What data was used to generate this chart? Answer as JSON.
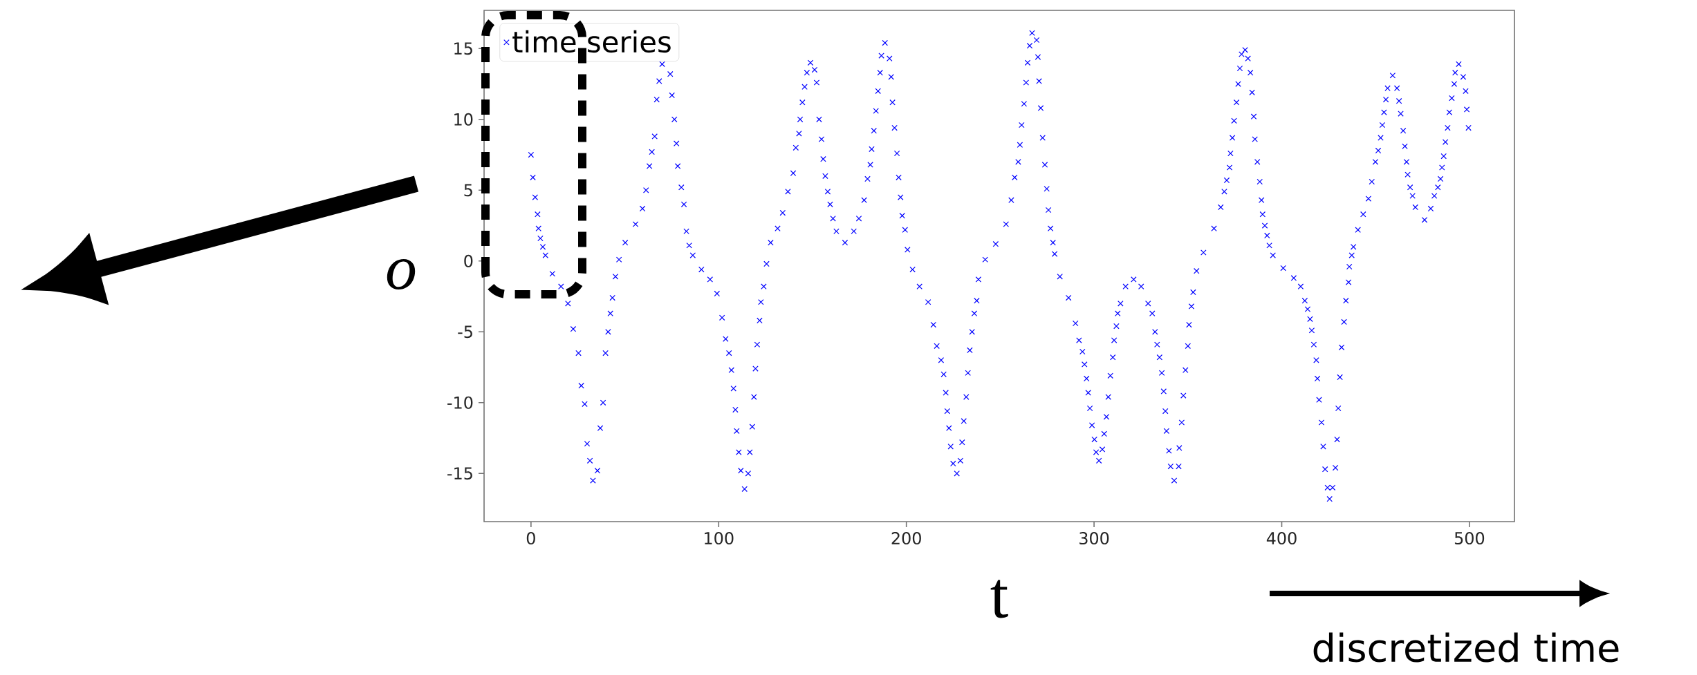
{
  "chart_data": {
    "type": "scatter",
    "xlabel": "t",
    "ylabel": "o",
    "annotations": [
      "discretized time"
    ],
    "legend": "top left",
    "marker": "cross",
    "xlim": [
      -25,
      524
    ],
    "ylim": [
      -18.4,
      17.7
    ],
    "xticks": [
      0,
      100,
      200,
      300,
      400,
      500
    ],
    "yticks": [
      -15,
      -10,
      -5,
      0,
      5,
      10,
      15
    ],
    "series": [
      {
        "name": "time series",
        "color": "#0000ff",
        "x": [
          0,
          1,
          2.2,
          3.5,
          4,
          5,
          6.3,
          7.7,
          11.4,
          16,
          19.7,
          22.5,
          25.3,
          26.8,
          28.6,
          29.9,
          31.4,
          33,
          35.4,
          36.9,
          38.4,
          39.7,
          41.1,
          42.3,
          43.4,
          45,
          46.9,
          50.2,
          55.7,
          59.4,
          61.3,
          63.1,
          64.4,
          65.9,
          67,
          68.3,
          69.9,
          74.2,
          75.1,
          76.4,
          77.5,
          78.2,
          80.1,
          81.5,
          82.8,
          84.3,
          86.2,
          90.8,
          95.4,
          99.1,
          101.8,
          103.7,
          105.5,
          106.8,
          107.9,
          108.9,
          109.6,
          110.7,
          111.8,
          113.8,
          115.7,
          116.6,
          117.9,
          118.8,
          119.6,
          120.5,
          121.8,
          122.5,
          124,
          125.5,
          127.7,
          131.4,
          134.1,
          136.9,
          139.7,
          141.1,
          142.8,
          143.4,
          144.6,
          145.8,
          147,
          148.9,
          151.1,
          152.2,
          153.5,
          154.8,
          155.7,
          156.8,
          158.1,
          159.4,
          160.9,
          162.7,
          167.3,
          172,
          174.7,
          177.5,
          179.3,
          180.8,
          181.5,
          182.7,
          183.8,
          184.9,
          186,
          186.7,
          188.6,
          191,
          191.9,
          192.6,
          193.7,
          195,
          195.9,
          196.9,
          197.8,
          199.3,
          200.6,
          203.3,
          207,
          211.6,
          214.4,
          216.2,
          218.5,
          219.9,
          221,
          221.8,
          222.7,
          223.6,
          224.9,
          226.9,
          228.8,
          229.7,
          230.6,
          231.9,
          232.8,
          233.8,
          235,
          236.2,
          237.5,
          238.4,
          242,
          247.6,
          253.1,
          255.9,
          257.7,
          259.6,
          260.5,
          261.4,
          262.7,
          263.8,
          264.6,
          265.7,
          267,
          269.4,
          270.1,
          270.7,
          271.6,
          272.6,
          273.8,
          274.8,
          275.7,
          276.8,
          278.1,
          279,
          281.8,
          286.4,
          290.1,
          292,
          293.8,
          294.9,
          296,
          296.9,
          297.8,
          298.9,
          300.2,
          301.1,
          302.6,
          304.4,
          305.4,
          306.6,
          307.6,
          308.7,
          310,
          310.7,
          311.9,
          312.6,
          314.1,
          316.8,
          321.1,
          325.1,
          328.8,
          331,
          332.5,
          333.6,
          334.9,
          336.1,
          337.1,
          338,
          338.6,
          339.9,
          340.8,
          342.7,
          345.1,
          345.4,
          346.7,
          347.6,
          348.7,
          350,
          350.6,
          351.9,
          352.8,
          354.6,
          358.3,
          363.9,
          367.5,
          369.4,
          370.7,
          372.2,
          372.7,
          373.7,
          374.6,
          375.9,
          376.8,
          377.7,
          378.6,
          380.5,
          382,
          383.3,
          384.2,
          385.1,
          385.7,
          387,
          388.3,
          389.2,
          389.8,
          391,
          392.2,
          393.4,
          395.3,
          400.8,
          406.4,
          410.1,
          412.3,
          413.8,
          415.1,
          416,
          417.1,
          418.4,
          419,
          419.9,
          421.2,
          422.1,
          423.1,
          424.4,
          425.5,
          427.1,
          428.6,
          429.5,
          430.1,
          431,
          431.9,
          433.2,
          434.2,
          435.6,
          436,
          437.3,
          438.2,
          440.6,
          443.4,
          446.2,
          448,
          449.9,
          451.4,
          452.7,
          453.6,
          454.5,
          455.5,
          456.4,
          459.1,
          461.4,
          462.5,
          463.4,
          464.7,
          465.6,
          466.5,
          467.1,
          468.4,
          469.7,
          471.2,
          476.1,
          479.4,
          481.3,
          483.2,
          484.6,
          485.4,
          486.3,
          487.2,
          488.4,
          489.3,
          490.6,
          491.9,
          492.4,
          494.3,
          496.7,
          498,
          498.6,
          499.5
        ],
        "values": [
          7.5,
          5.9,
          4.5,
          3.3,
          2.3,
          1.6,
          1.0,
          0.4,
          -0.9,
          -1.8,
          -3.0,
          -4.8,
          -6.5,
          -8.8,
          -10.1,
          -12.9,
          -14.1,
          -15.5,
          -14.8,
          -11.8,
          -10.0,
          -6.5,
          -5.0,
          -3.7,
          -2.6,
          -1.1,
          0.1,
          1.3,
          2.6,
          3.7,
          5.0,
          6.7,
          7.7,
          8.8,
          11.4,
          12.7,
          13.9,
          13.2,
          11.7,
          10.0,
          8.3,
          6.7,
          5.2,
          4.0,
          2.1,
          1.1,
          0.4,
          -0.6,
          -1.3,
          -2.3,
          -4.0,
          -5.5,
          -6.5,
          -7.7,
          -9.0,
          -10.5,
          -12.0,
          -13.5,
          -14.8,
          -16.1,
          -15.0,
          -13.5,
          -11.7,
          -9.6,
          -7.6,
          -5.9,
          -4.2,
          -2.9,
          -1.8,
          -0.2,
          1.3,
          2.3,
          3.4,
          4.9,
          6.2,
          8.0,
          9.0,
          10.0,
          11.2,
          12.3,
          13.3,
          14.0,
          13.5,
          12.6,
          10.0,
          8.6,
          7.2,
          6.0,
          4.9,
          4.0,
          3.0,
          2.1,
          1.3,
          2.1,
          3.0,
          4.3,
          5.8,
          6.8,
          7.9,
          9.2,
          10.6,
          12.0,
          13.3,
          14.5,
          15.4,
          14.3,
          13.0,
          11.2,
          9.4,
          7.6,
          5.9,
          4.5,
          3.2,
          2.2,
          0.8,
          -0.6,
          -1.8,
          -2.9,
          -4.5,
          -6.0,
          -7.0,
          -8.0,
          -9.3,
          -10.6,
          -11.8,
          -13.1,
          -14.3,
          -15.0,
          -14.1,
          -12.8,
          -11.3,
          -9.6,
          -7.9,
          -6.3,
          -5.0,
          -3.7,
          -2.8,
          -1.3,
          0.1,
          1.2,
          2.6,
          4.3,
          5.9,
          7.0,
          8.2,
          9.6,
          11.1,
          12.6,
          14.0,
          15.2,
          16.1,
          15.6,
          14.4,
          12.7,
          10.8,
          8.7,
          6.8,
          5.1,
          3.6,
          2.3,
          1.3,
          0.5,
          -1.1,
          -2.6,
          -4.4,
          -5.6,
          -6.4,
          -7.3,
          -8.3,
          -9.3,
          -10.4,
          -11.6,
          -12.6,
          -13.5,
          -14.1,
          -13.3,
          -12.2,
          -11.0,
          -9.6,
          -8.1,
          -6.8,
          -5.6,
          -4.6,
          -3.7,
          -3.0,
          -1.8,
          -1.3,
          -1.8,
          -3.0,
          -3.7,
          -5.0,
          -5.9,
          -6.8,
          -7.9,
          -9.2,
          -10.6,
          -12.0,
          -13.4,
          -14.5,
          -15.5,
          -14.5,
          -13.2,
          -11.4,
          -9.5,
          -7.7,
          -6.0,
          -4.5,
          -3.2,
          -2.2,
          -0.7,
          0.6,
          2.3,
          3.8,
          4.9,
          5.7,
          6.6,
          7.6,
          8.7,
          9.9,
          11.2,
          12.5,
          13.6,
          14.6,
          14.9,
          14.3,
          13.3,
          11.9,
          10.2,
          8.6,
          7.0,
          5.6,
          4.3,
          3.3,
          2.5,
          1.8,
          1.1,
          0.4,
          -0.5,
          -1.2,
          -1.8,
          -2.8,
          -3.4,
          -4.1,
          -4.9,
          -5.9,
          -7.0,
          -8.3,
          -9.8,
          -11.4,
          -13.1,
          -14.7,
          -16.0,
          -16.8,
          -16.0,
          -14.6,
          -12.6,
          -10.4,
          -8.2,
          -6.1,
          -4.3,
          -2.8,
          -1.5,
          -0.4,
          0.4,
          1.0,
          2.2,
          3.3,
          4.4,
          5.6,
          7.0,
          7.8,
          8.7,
          9.6,
          10.5,
          11.4,
          12.2,
          13.1,
          12.2,
          11.3,
          10.4,
          9.2,
          8.1,
          7.0,
          6.1,
          5.2,
          4.6,
          3.8,
          2.9,
          3.7,
          4.6,
          5.2,
          5.8,
          6.6,
          7.4,
          8.4,
          9.4,
          10.5,
          11.5,
          12.5,
          13.3,
          13.9,
          13.0,
          12.0,
          10.7,
          9.4
        ]
      }
    ]
  }
}
